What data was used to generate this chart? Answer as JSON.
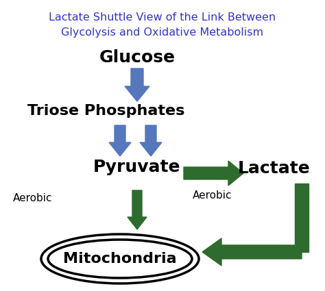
{
  "title_line1": "Lactate Shuttle View of the Link Between",
  "title_line2": "Glycolysis and Oxidative Metabolism",
  "title_color": "#3333CC",
  "title_fontsize": 11.5,
  "blue_arrow_color": "#5577BB",
  "green_arrow_color": "#2E6B2E",
  "text_color": "#000000",
  "bg_color": "#FFFFFF",
  "labels": {
    "glucose": "Glucose",
    "triose": "Triose Phosphates",
    "pyruvate": "Pyruvate",
    "lactate": "Lactate",
    "mitochondria": "Mitochondria",
    "aerobic_left": "Aerobic",
    "aerobic_right": "Aerobic"
  },
  "label_fontsizes": {
    "glucose": 18,
    "triose": 16,
    "pyruvate": 18,
    "lactate": 18,
    "mitochondria": 16,
    "aerobic": 11
  }
}
